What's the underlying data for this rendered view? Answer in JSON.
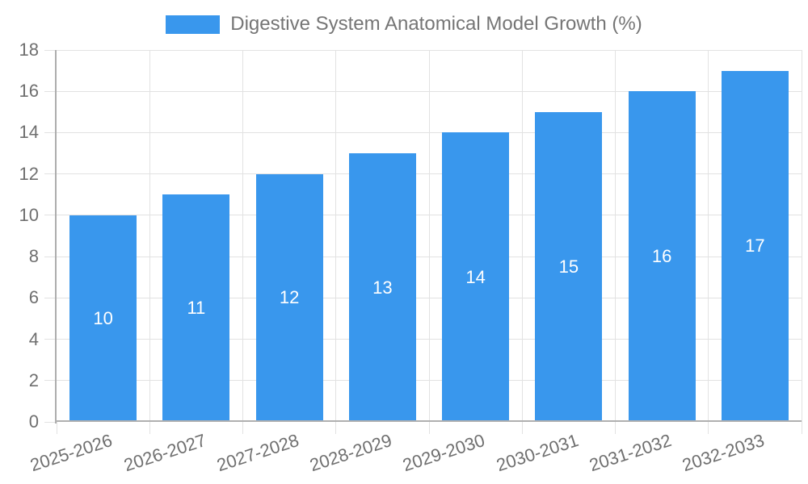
{
  "legend": {
    "series_label": "Digestive System Anatomical Model Growth (%)"
  },
  "chart_data": {
    "type": "bar",
    "title": "Digestive System Anatomical Model Growth (%)",
    "categories": [
      "2025-2026",
      "2026-2027",
      "2027-2028",
      "2028-2029",
      "2029-2030",
      "2030-2031",
      "2031-2032",
      "2032-2033"
    ],
    "values": [
      10,
      11,
      12,
      13,
      14,
      15,
      16,
      17
    ],
    "bar_value_labels": [
      "10",
      "11",
      "12",
      "13",
      "14",
      "15",
      "16",
      "17"
    ],
    "xlabel": "",
    "ylabel": "",
    "ylim": [
      0,
      18
    ],
    "ytick_step": 2,
    "yticks": [
      0,
      2,
      4,
      6,
      8,
      10,
      12,
      14,
      16,
      18
    ],
    "grid": true,
    "legend_position": "top-center",
    "x_label_rotation_deg": -18,
    "colors": {
      "bar": "#3997ed",
      "bar_label": "#ffffff",
      "grid": "#e2e2e2",
      "axis": "#adadad",
      "tick_text": "#6f6f6f",
      "title_text": "#757575",
      "background": "#ffffff"
    }
  }
}
